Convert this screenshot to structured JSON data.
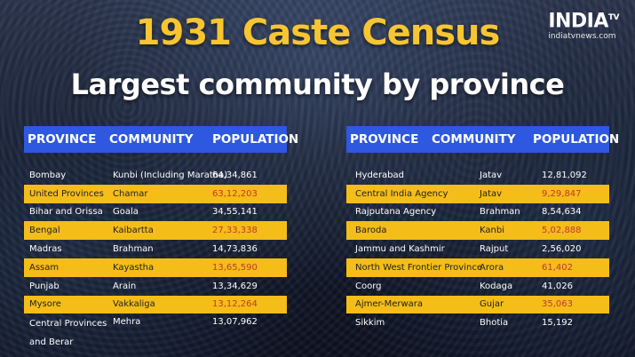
{
  "title": "1931 Caste Census",
  "subtitle": "Largest community by province",
  "logo": {
    "name": "INDIA",
    "sup": "TV",
    "url": "indiatvnews.com"
  },
  "headers": {
    "province": "PROVINCE",
    "community": "COMMUNITY",
    "population": "POPULATION"
  },
  "left_table": [
    {
      "province": "Bombay",
      "community": "Kunbi (Including Maratha)",
      "population": "64,34,861",
      "highlight": false
    },
    {
      "province": "United Provinces",
      "community": "Chamar",
      "population": "63,12,203",
      "highlight": true
    },
    {
      "province": "Bihar and Orissa",
      "community": "Goala",
      "population": "34,55,141",
      "highlight": false
    },
    {
      "province": "Bengal",
      "community": "Kaibartta",
      "population": "27,33,338",
      "highlight": true
    },
    {
      "province": "Madras",
      "community": "Brahman",
      "population": "14,73,836",
      "highlight": false
    },
    {
      "province": "Assam",
      "community": "Kayastha",
      "population": "13,65,590",
      "highlight": true
    },
    {
      "province": "Punjab",
      "community": "Arain",
      "population": "13,34,629",
      "highlight": false
    },
    {
      "province": "Mysore",
      "community": "Vakkaliga",
      "population": "13,12,264",
      "highlight": true
    },
    {
      "province": "Central Provinces and Berar",
      "community": "Mehra",
      "population": "13,07,962",
      "highlight": false
    }
  ],
  "right_table": [
    {
      "province": "Hyderabad",
      "community": "Jatav",
      "population": "12,81,092",
      "highlight": false
    },
    {
      "province": "Central India Agency",
      "community": "Jatav",
      "population": "9,29,847",
      "highlight": true
    },
    {
      "province": "Rajputana Agency",
      "community": "Brahman",
      "population": "8,54,634",
      "highlight": false
    },
    {
      "province": "Baroda",
      "community": "Kanbi",
      "population": "5,02,888",
      "highlight": true
    },
    {
      "province": "Jammu and Kashmir",
      "community": "Rajput",
      "population": "2,56,020",
      "highlight": false
    },
    {
      "province": "North West Frontier Province",
      "community": "Arora",
      "population": "61,402",
      "highlight": true
    },
    {
      "province": "Coorg",
      "community": "Kodaga",
      "population": "41,026",
      "highlight": false
    },
    {
      "province": "Ajmer-Merwara",
      "community": "Gujar",
      "population": "35,063",
      "highlight": true
    },
    {
      "province": "Sikkim",
      "community": "Bhotia",
      "population": "15,192",
      "highlight": false
    }
  ]
}
